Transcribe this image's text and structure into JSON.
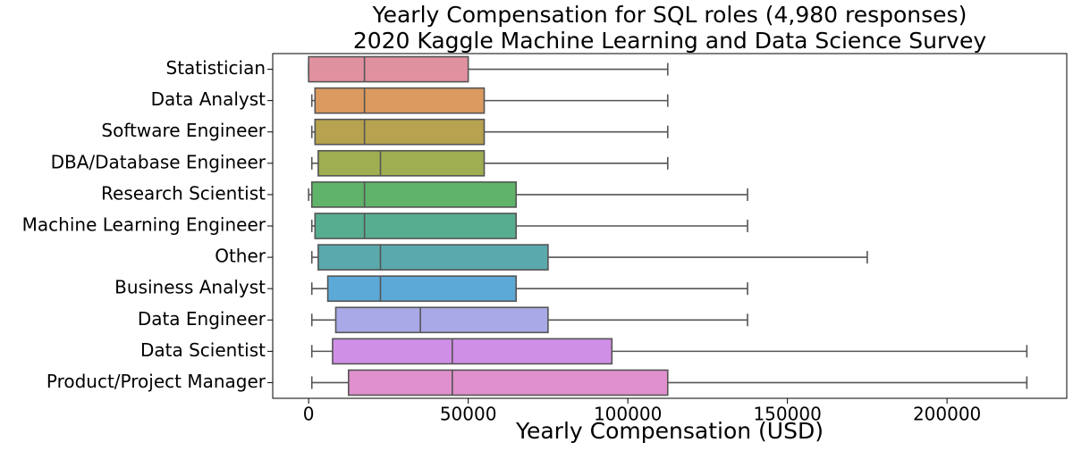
{
  "chart_data": {
    "type": "box",
    "title": "Yearly Compensation for SQL roles (4,980 responses)",
    "subtitle": "2020 Kaggle Machine Learning and Data Science Survey",
    "x_label": "Yearly Compensation (USD)",
    "categories": [
      "Statistician",
      "Data Analyst",
      "Software Engineer",
      "DBA/Database Engineer",
      "Research Scientist",
      "Machine Learning Engineer",
      "Other",
      "Business Analyst",
      "Data Engineer",
      "Data Scientist",
      "Product/Project Manager"
    ],
    "colors": [
      "#e0919f",
      "#db9a5f",
      "#b6a24f",
      "#9fae51",
      "#60b469",
      "#57ad90",
      "#5aa9ac",
      "#5ca9d8",
      "#a9a9e8",
      "#d08fe7",
      "#e090cc"
    ],
    "boxes": [
      {
        "min": 0,
        "q1": 0,
        "median": 17500,
        "q3": 50000,
        "max": 112500
      },
      {
        "min": 1000,
        "q1": 2000,
        "median": 17500,
        "q3": 55000,
        "max": 112500
      },
      {
        "min": 1000,
        "q1": 2000,
        "median": 17500,
        "q3": 55000,
        "max": 112500
      },
      {
        "min": 1000,
        "q1": 3000,
        "median": 22500,
        "q3": 55000,
        "max": 112500
      },
      {
        "min": 0,
        "q1": 1000,
        "median": 17500,
        "q3": 65000,
        "max": 137500
      },
      {
        "min": 1000,
        "q1": 2000,
        "median": 17500,
        "q3": 65000,
        "max": 137500
      },
      {
        "min": 1000,
        "q1": 3000,
        "median": 22500,
        "q3": 75000,
        "max": 175000
      },
      {
        "min": 1000,
        "q1": 6000,
        "median": 22500,
        "q3": 65000,
        "max": 137500
      },
      {
        "min": 1000,
        "q1": 8500,
        "median": 35000,
        "q3": 75000,
        "max": 137500
      },
      {
        "min": 1000,
        "q1": 7500,
        "median": 45000,
        "q3": 95000,
        "max": 225000
      },
      {
        "min": 1000,
        "q1": 12500,
        "median": 45000,
        "q3": 112500,
        "max": 225000
      }
    ],
    "xlim": [
      -11250,
      237500
    ],
    "xticks": [
      0,
      50000,
      100000,
      150000,
      200000
    ]
  }
}
